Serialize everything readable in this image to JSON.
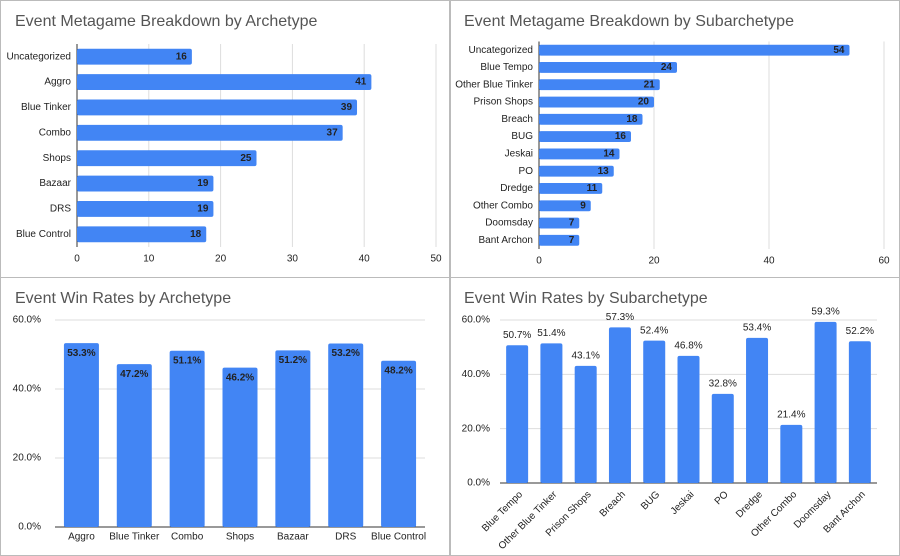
{
  "chart_data": [
    {
      "type": "bar",
      "orientation": "horizontal",
      "title": "Event Metagame Breakdown by Archetype",
      "categories": [
        "Uncategorized",
        "Aggro",
        "Blue Tinker",
        "Combo",
        "Shops",
        "Bazaar",
        "DRS",
        "Blue Control"
      ],
      "values": [
        16,
        41,
        39,
        37,
        25,
        19,
        19,
        18
      ],
      "color": "#4285f4",
      "xlim": [
        0,
        50
      ],
      "xticks": [
        0,
        10,
        20,
        30,
        40,
        50
      ],
      "grid": true
    },
    {
      "type": "bar",
      "orientation": "horizontal",
      "title": "Event Metagame Breakdown by Subarchetype",
      "categories": [
        "Uncategorized",
        "Blue Tempo",
        "Other Blue Tinker",
        "Prison Shops",
        "Breach",
        "BUG",
        "Jeskai",
        "PO",
        "Dredge",
        "Other Combo",
        "Doomsday",
        "Bant Archon"
      ],
      "values": [
        54,
        24,
        21,
        20,
        18,
        16,
        14,
        13,
        11,
        9,
        7,
        7
      ],
      "color": "#4285f4",
      "xlim": [
        0,
        60
      ],
      "xticks": [
        0,
        20,
        40,
        60
      ],
      "grid": true
    },
    {
      "type": "bar",
      "orientation": "vertical",
      "title": "Event Win Rates by Archetype",
      "categories": [
        "Aggro",
        "Blue Tinker",
        "Combo",
        "Shops",
        "Bazaar",
        "DRS",
        "Blue Control"
      ],
      "values": [
        53.3,
        47.2,
        51.1,
        46.2,
        51.2,
        53.2,
        48.2
      ],
      "value_labels": [
        "53.3%",
        "47.2%",
        "51.1%",
        "46.2%",
        "51.2%",
        "53.2%",
        "48.2%"
      ],
      "color": "#4285f4",
      "ylim": [
        0,
        60
      ],
      "yticks": [
        {
          "value": 0,
          "label": "0.0%"
        },
        {
          "value": 20,
          "label": "20.0%"
        },
        {
          "value": 40,
          "label": "40.0%"
        },
        {
          "value": 60,
          "label": "60.0%"
        }
      ],
      "grid": true
    },
    {
      "type": "bar",
      "orientation": "vertical",
      "title": "Event Win Rates by Subarchetype",
      "categories": [
        "Blue Tempo",
        "Other Blue Tinker",
        "Prison Shops",
        "Breach",
        "BUG",
        "Jeskai",
        "PO",
        "Dredge",
        "Other Combo",
        "Doomsday",
        "Bant Archon"
      ],
      "values": [
        50.7,
        51.4,
        43.1,
        57.3,
        52.4,
        46.8,
        32.8,
        53.4,
        21.4,
        59.3,
        52.2
      ],
      "value_labels": [
        "50.7%",
        "51.4%",
        "43.1%",
        "57.3%",
        "52.4%",
        "46.8%",
        "32.8%",
        "53.4%",
        "21.4%",
        "59.3%",
        "52.2%"
      ],
      "color": "#4285f4",
      "ylim": [
        0,
        60
      ],
      "yticks": [
        {
          "value": 0,
          "label": "0.0%"
        },
        {
          "value": 20,
          "label": "20.0%"
        },
        {
          "value": 40,
          "label": "40.0%"
        },
        {
          "value": 60,
          "label": "60.0%"
        }
      ],
      "grid": true
    }
  ]
}
